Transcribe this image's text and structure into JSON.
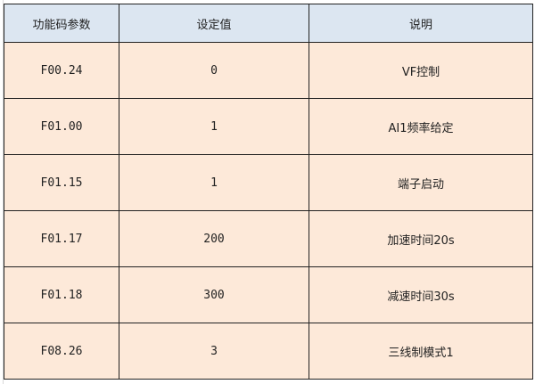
{
  "table": {
    "headers": [
      "功能码参数",
      "设定值",
      "说明"
    ],
    "rows": [
      [
        "F00.24",
        "0",
        "VF控制"
      ],
      [
        "F01.00",
        "1",
        "AI1频率给定"
      ],
      [
        "F01.15",
        "1",
        "端子启动"
      ],
      [
        "F01.17",
        "200",
        "加速时间20s"
      ],
      [
        "F01.18",
        "300",
        "减速时间30s"
      ],
      [
        "F08.26",
        "3",
        "三线制模式1"
      ]
    ],
    "colors": {
      "header_bg": "#dce6f1",
      "row_bg": "#fde9d9",
      "border": "#222222"
    }
  }
}
